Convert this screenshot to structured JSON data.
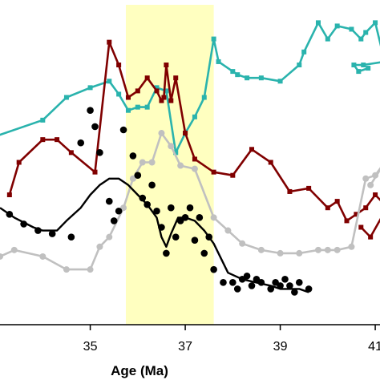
{
  "chart_data": {
    "type": "line",
    "xlabel": "Age (Ma)",
    "x_ticks": [
      35,
      37,
      39,
      41
    ],
    "xlim": [
      33.1,
      41.1
    ],
    "ylim": [
      0,
      100
    ],
    "grid": false,
    "highlight_band": {
      "x0": 35.75,
      "x1": 37.6,
      "color": "#ffffc0"
    },
    "series": [
      {
        "color": "#2ab3ad",
        "marker": "square",
        "points": [
          [
            33.0,
            58
          ],
          [
            34.0,
            63
          ],
          [
            34.5,
            70
          ],
          [
            35.0,
            73
          ],
          [
            35.4,
            75
          ],
          [
            35.6,
            71
          ],
          [
            35.8,
            66
          ],
          [
            36.0,
            67
          ],
          [
            36.2,
            67
          ],
          [
            36.4,
            73
          ],
          [
            36.6,
            72
          ],
          [
            36.8,
            53
          ],
          [
            37.0,
            59
          ],
          [
            37.2,
            64
          ],
          [
            37.4,
            70
          ],
          [
            37.6,
            88
          ],
          [
            37.7,
            81
          ],
          [
            38.0,
            78
          ],
          [
            38.1,
            77
          ],
          [
            38.3,
            76
          ],
          [
            38.6,
            76
          ],
          [
            39.0,
            75
          ],
          [
            39.4,
            80
          ],
          [
            39.5,
            84
          ],
          [
            39.8,
            93
          ],
          [
            40.0,
            88
          ],
          [
            40.2,
            92
          ],
          [
            40.5,
            91
          ],
          [
            40.7,
            88
          ],
          [
            40.8,
            90
          ],
          [
            41.0,
            93
          ],
          [
            41.2,
            81
          ],
          [
            40.75,
            80
          ],
          [
            40.55,
            80
          ],
          [
            40.65,
            78
          ],
          [
            40.85,
            79
          ]
        ]
      },
      {
        "color": "#800000",
        "marker": "square",
        "points": [
          [
            33.3,
            40
          ],
          [
            33.5,
            50
          ],
          [
            34.0,
            57
          ],
          [
            34.3,
            57
          ],
          [
            34.6,
            53
          ],
          [
            35.1,
            47
          ],
          [
            35.4,
            87
          ],
          [
            35.6,
            80
          ],
          [
            35.8,
            70
          ],
          [
            36.0,
            72
          ],
          [
            36.2,
            76
          ],
          [
            36.4,
            72
          ],
          [
            36.5,
            69
          ],
          [
            36.55,
            70
          ],
          [
            36.6,
            80
          ],
          [
            36.7,
            69
          ],
          [
            36.8,
            76
          ],
          [
            37.0,
            59
          ],
          [
            37.2,
            51
          ],
          [
            37.6,
            47
          ],
          [
            38.0,
            46
          ],
          [
            38.4,
            54
          ],
          [
            38.8,
            50
          ],
          [
            39.2,
            41
          ],
          [
            39.6,
            42
          ],
          [
            40.0,
            36
          ],
          [
            40.2,
            38
          ],
          [
            40.4,
            32
          ],
          [
            40.6,
            34
          ],
          [
            40.8,
            36
          ],
          [
            41.0,
            40
          ],
          [
            41.2,
            37
          ],
          [
            41.4,
            40
          ],
          [
            40.9,
            27
          ],
          [
            40.7,
            30
          ]
        ]
      },
      {
        "color": "#c0c0c0",
        "marker": "circle",
        "points": [
          [
            33.1,
            21
          ],
          [
            33.4,
            23
          ],
          [
            34.0,
            21
          ],
          [
            34.5,
            17
          ],
          [
            35.0,
            17
          ],
          [
            35.2,
            24
          ],
          [
            35.4,
            27
          ],
          [
            35.7,
            36
          ],
          [
            35.9,
            45
          ],
          [
            36.1,
            50
          ],
          [
            36.3,
            50
          ],
          [
            36.5,
            59
          ],
          [
            36.7,
            55
          ],
          [
            36.9,
            49
          ],
          [
            37.2,
            48
          ],
          [
            37.6,
            33
          ],
          [
            37.9,
            29
          ],
          [
            38.2,
            25
          ],
          [
            38.6,
            23
          ],
          [
            39.0,
            22
          ],
          [
            39.4,
            22
          ],
          [
            39.8,
            23
          ],
          [
            40.0,
            23
          ],
          [
            40.2,
            23
          ],
          [
            40.5,
            24
          ],
          [
            40.8,
            45
          ],
          [
            41.0,
            46
          ],
          [
            41.2,
            50
          ],
          [
            40.9,
            43
          ]
        ]
      },
      {
        "color": "#000000",
        "marker": "none",
        "points": [
          [
            33.1,
            36
          ],
          [
            33.4,
            33
          ],
          [
            33.8,
            30
          ],
          [
            34.0,
            29
          ],
          [
            34.3,
            29
          ],
          [
            34.5,
            32
          ],
          [
            34.8,
            36
          ],
          [
            35.0,
            40
          ],
          [
            35.2,
            43
          ],
          [
            35.4,
            45
          ],
          [
            35.6,
            45
          ],
          [
            35.8,
            43
          ],
          [
            36.0,
            40
          ],
          [
            36.2,
            37
          ],
          [
            36.4,
            33
          ],
          [
            36.5,
            27
          ],
          [
            36.6,
            24
          ],
          [
            36.7,
            28
          ],
          [
            36.85,
            33
          ],
          [
            37.0,
            33
          ],
          [
            37.2,
            32
          ],
          [
            37.4,
            29
          ],
          [
            37.6,
            25
          ],
          [
            37.9,
            16
          ],
          [
            38.2,
            14
          ],
          [
            38.5,
            13
          ],
          [
            38.8,
            12
          ],
          [
            39.0,
            11
          ],
          [
            39.2,
            11
          ],
          [
            39.4,
            11
          ],
          [
            39.6,
            10
          ]
        ]
      },
      {
        "color": "#000000",
        "marker": "circle-only",
        "points": [
          [
            33.3,
            34
          ],
          [
            33.6,
            31
          ],
          [
            33.9,
            29
          ],
          [
            34.2,
            28
          ],
          [
            34.6,
            27
          ],
          [
            34.8,
            56
          ],
          [
            35.0,
            66
          ],
          [
            35.2,
            53
          ],
          [
            35.4,
            38
          ],
          [
            35.5,
            32
          ],
          [
            35.7,
            60
          ],
          [
            35.9,
            52
          ],
          [
            36.0,
            46
          ],
          [
            36.2,
            37
          ],
          [
            36.4,
            35
          ],
          [
            36.5,
            30
          ],
          [
            36.6,
            22
          ],
          [
            36.8,
            27
          ],
          [
            37.0,
            33
          ],
          [
            37.2,
            26
          ],
          [
            37.4,
            22
          ],
          [
            37.6,
            17
          ],
          [
            37.8,
            13
          ],
          [
            38.0,
            13
          ],
          [
            38.2,
            14
          ],
          [
            38.4,
            12
          ],
          [
            38.6,
            13
          ],
          [
            38.8,
            11
          ],
          [
            39.0,
            12
          ],
          [
            39.2,
            12
          ],
          [
            39.4,
            13
          ],
          [
            39.6,
            11
          ],
          [
            35.1,
            61
          ],
          [
            35.6,
            35
          ],
          [
            36.1,
            39
          ],
          [
            36.3,
            43
          ],
          [
            36.7,
            36
          ],
          [
            36.9,
            32
          ],
          [
            37.1,
            36
          ],
          [
            37.3,
            33
          ],
          [
            37.5,
            27
          ],
          [
            38.5,
            14
          ],
          [
            38.9,
            13
          ],
          [
            39.3,
            10
          ],
          [
            39.1,
            14
          ],
          [
            38.1,
            11
          ],
          [
            38.3,
            15
          ]
        ]
      }
    ]
  }
}
